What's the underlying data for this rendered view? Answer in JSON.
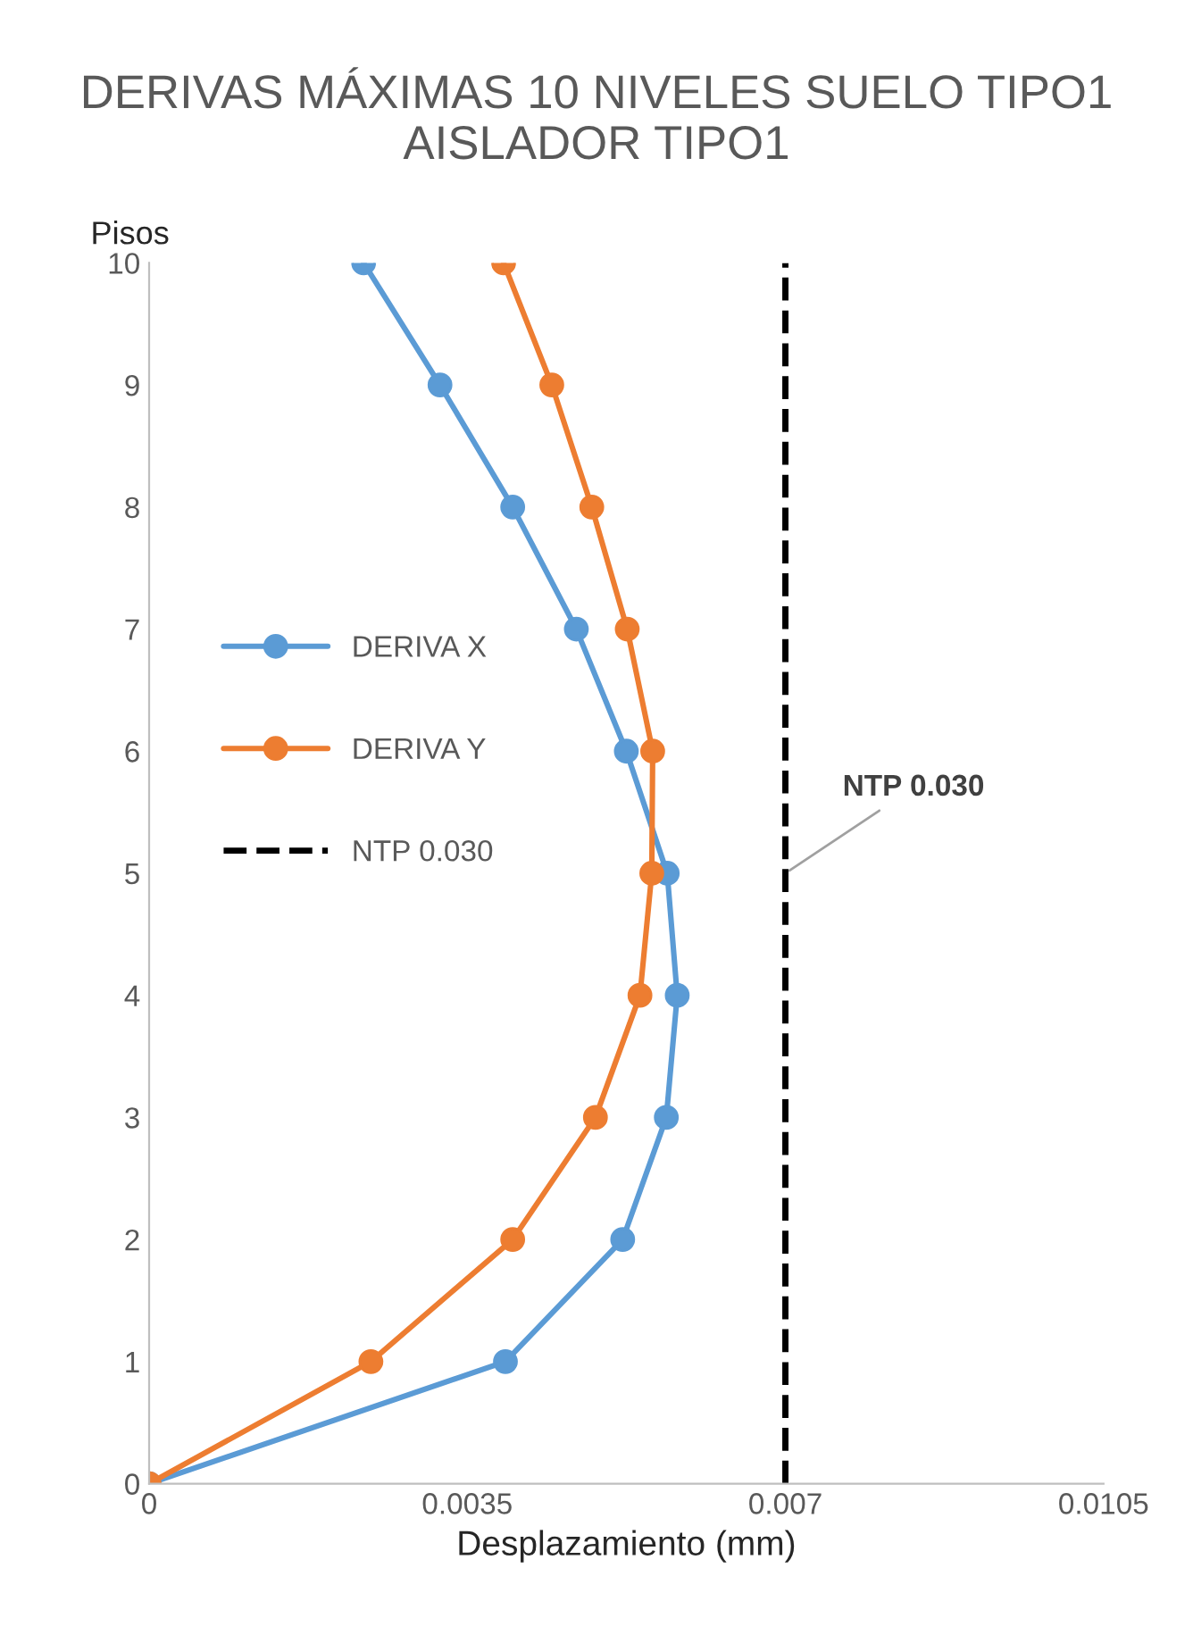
{
  "chart_data": {
    "type": "line",
    "title": "DERIVAS MÁXIMAS 10 NIVELES SUELO TIPO1 AISLADOR TIPO1",
    "xlabel": "Desplazamiento (mm)",
    "ylabel": "Pisos",
    "series": [
      {
        "name": "DERIVA X",
        "color": "#5b9bd5",
        "x": [
          0,
          0.00392,
          0.00521,
          0.00569,
          0.00581,
          0.0057,
          0.00525,
          0.0047,
          0.004,
          0.0032,
          0.00236
        ],
        "values": [
          0,
          1,
          2,
          3,
          4,
          5,
          6,
          7,
          8,
          9,
          10
        ]
      },
      {
        "name": "DERIVA Y",
        "color": "#ed7d31",
        "x": [
          0,
          0.00244,
          0.004,
          0.00491,
          0.0054,
          0.00553,
          0.00554,
          0.00526,
          0.00487,
          0.00443,
          0.0039
        ],
        "values": [
          0,
          1,
          2,
          3,
          4,
          5,
          6,
          7,
          8,
          9,
          10
        ]
      }
    ],
    "ref_lines": [
      {
        "axis": "x",
        "value": 0.007,
        "label": "NTP 0.030",
        "color": "#000000",
        "line_style": "dashed"
      }
    ],
    "marker": "circle",
    "line_style": "solid",
    "grid": false,
    "legend": "left",
    "xlim": [
      0,
      0.0105
    ],
    "xticks": [
      0,
      0.0035,
      0.007,
      0.0105
    ],
    "ylim": [
      0,
      10
    ],
    "yticks": [
      0,
      1,
      2,
      3,
      4,
      5,
      6,
      7,
      8,
      9,
      10
    ]
  }
}
